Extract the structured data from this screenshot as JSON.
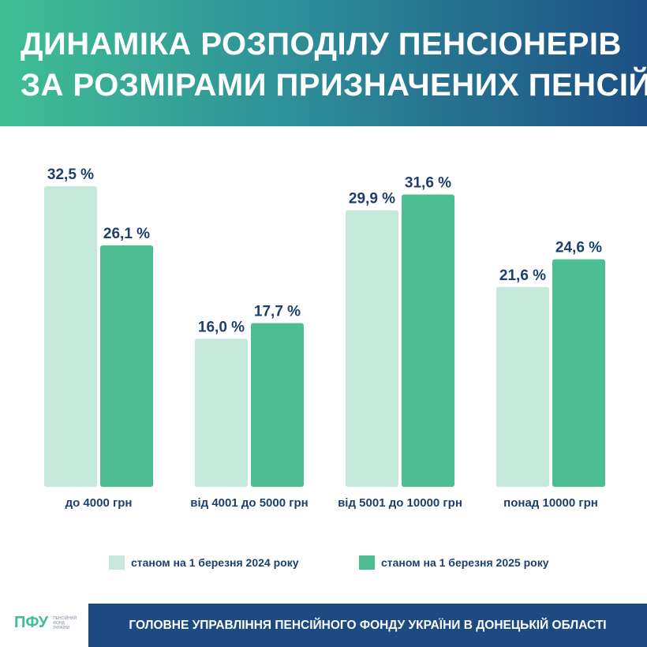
{
  "title": {
    "line1": "ДИНАМІКА РОЗПОДІЛУ ПЕНСІОНЕРІВ",
    "line2": "ЗА РОЗМІРАМИ ПРИЗНАЧЕНИХ ПЕНСІЙ"
  },
  "colors": {
    "series_2024": "#c6e8db",
    "series_2025": "#4dbe94",
    "label": "#1d3f6b",
    "footer": "#1d4a80"
  },
  "chart_data": {
    "type": "bar",
    "categories": [
      "до 4000 грн",
      "від 4001 до 5000 грн",
      "від 5001 до 10000 грн",
      "понад 10000 грн"
    ],
    "series": [
      {
        "name": "станом на 1 березня 2024 року",
        "values": [
          32.5,
          16.0,
          29.9,
          21.6
        ],
        "labels": [
          "32,5 %",
          "16,0 %",
          "29,9 %",
          "21,6 %"
        ]
      },
      {
        "name": "станом на 1 березня 2025 року",
        "values": [
          26.1,
          17.7,
          31.6,
          24.6
        ],
        "labels": [
          "26,1 %",
          "17,7 %",
          "31,6 %",
          "24,6 %"
        ]
      }
    ],
    "unit": "%",
    "ylim": [
      0,
      33
    ],
    "grid": false,
    "legend": "bottom"
  },
  "legend": [
    {
      "label": "станом на 1 березня 2024 року",
      "color": "#c6e8db"
    },
    {
      "label": "станом на 1 березня 2025 року",
      "color": "#4dbe94"
    }
  ],
  "logo": {
    "mark": "ПФУ",
    "text": "ПЕНСІЙНИЙ ФОНД УКРАЇНИ"
  },
  "footer": {
    "text": "ГОЛОВНЕ УПРАВЛІННЯ ПЕНСІЙНОГО ФОНДУ УКРАЇНИ В ДОНЕЦЬКІЙ ОБЛАСТІ"
  }
}
